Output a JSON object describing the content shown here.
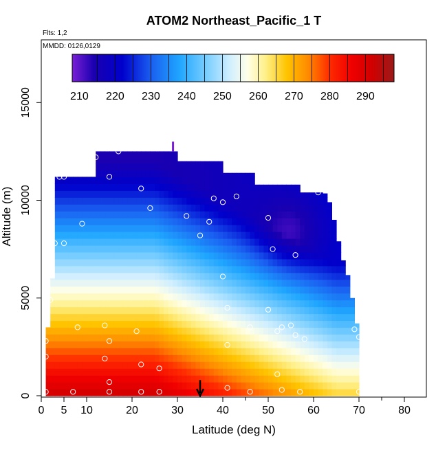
{
  "chart_data": {
    "type": "heatmap",
    "title": "ATOM2 Northeast_Pacific_1 T",
    "annotations": [
      "Flts: 1,2",
      "MMDD: 0126,0129"
    ],
    "xlabel": "Latitude (deg N)",
    "ylabel": "Altitude (m)",
    "xlim": [
      0,
      85
    ],
    "ylim": [
      0,
      17500
    ],
    "x_ticks": [
      0,
      5,
      10,
      20,
      30,
      40,
      50,
      60,
      70,
      80
    ],
    "y_ticks": [
      0,
      5000,
      10000,
      15000
    ],
    "grid": false,
    "colorbar": {
      "placement": "top-inside",
      "range": [
        208,
        298
      ],
      "ticks": [
        210,
        220,
        230,
        240,
        250,
        260,
        270,
        280,
        290
      ],
      "stops": [
        {
          "v": 208,
          "c": "#7a1fd6"
        },
        {
          "v": 214,
          "c": "#1a00b0"
        },
        {
          "v": 222,
          "c": "#0000cc"
        },
        {
          "v": 230,
          "c": "#1a5ef0"
        },
        {
          "v": 238,
          "c": "#1fa6ff"
        },
        {
          "v": 246,
          "c": "#7fd0ff"
        },
        {
          "v": 252,
          "c": "#cfeeff"
        },
        {
          "v": 257,
          "c": "#ffffe8"
        },
        {
          "v": 262,
          "c": "#fff08a"
        },
        {
          "v": 268,
          "c": "#ffc400"
        },
        {
          "v": 274,
          "c": "#ff8a00"
        },
        {
          "v": 280,
          "c": "#ff2a00"
        },
        {
          "v": 286,
          "c": "#f00000"
        },
        {
          "v": 292,
          "c": "#d00000"
        },
        {
          "v": 298,
          "c": "#9a1a1a"
        }
      ]
    },
    "domain_envelope": [
      [
        1,
        0
      ],
      [
        1,
        2000
      ],
      [
        2,
        5000
      ],
      [
        3,
        7000
      ],
      [
        3,
        11200
      ],
      [
        12,
        11200
      ],
      [
        12,
        12500
      ],
      [
        30,
        12500
      ],
      [
        30,
        12000
      ],
      [
        40,
        12000
      ],
      [
        40,
        11400
      ],
      [
        47,
        11400
      ],
      [
        47,
        10800
      ],
      [
        57,
        10800
      ],
      [
        57,
        10400
      ],
      [
        62,
        10400
      ],
      [
        63,
        10300
      ],
      [
        64,
        9500
      ],
      [
        65,
        8500
      ],
      [
        66,
        7300
      ],
      [
        68,
        5800
      ],
      [
        69,
        4200
      ],
      [
        70,
        3200
      ],
      [
        70.5,
        0
      ]
    ],
    "temperature_model": {
      "surface_tropics": 292,
      "surface_high_lat": 266,
      "lapse_rate_K_per_km": 6.5,
      "tropopause_temp_tropics": 214,
      "tropopause_temp_high_lat": 222,
      "tropopause_alt_tropics_m": 12500,
      "tropopause_alt_high_lat_m": 9000
    },
    "samples": [
      [
        1,
        200
      ],
      [
        1,
        2000
      ],
      [
        1,
        2800
      ],
      [
        2,
        4900
      ],
      [
        2,
        7000
      ],
      [
        3,
        7800
      ],
      [
        4,
        11200
      ],
      [
        5,
        11200
      ],
      [
        5,
        7800
      ],
      [
        7,
        200
      ],
      [
        8,
        3500
      ],
      [
        9,
        8800
      ],
      [
        12,
        12200
      ],
      [
        14,
        3600
      ],
      [
        14,
        1900
      ],
      [
        15,
        11200
      ],
      [
        15,
        200
      ],
      [
        15,
        700
      ],
      [
        15,
        2800
      ],
      [
        17,
        12500
      ],
      [
        21,
        3300
      ],
      [
        22,
        10600
      ],
      [
        22,
        1600
      ],
      [
        22,
        200
      ],
      [
        24,
        9600
      ],
      [
        26,
        1400
      ],
      [
        26,
        200
      ],
      [
        32,
        9200
      ],
      [
        35,
        8200
      ],
      [
        37,
        8900
      ],
      [
        38,
        10100
      ],
      [
        40,
        9900
      ],
      [
        40,
        6100
      ],
      [
        41,
        4500
      ],
      [
        41,
        2600
      ],
      [
        41,
        400
      ],
      [
        43,
        10200
      ],
      [
        46,
        200
      ],
      [
        46,
        3500
      ],
      [
        50,
        9100
      ],
      [
        50,
        4400
      ],
      [
        51,
        7500
      ],
      [
        52,
        3300
      ],
      [
        52,
        1100
      ],
      [
        53,
        3500
      ],
      [
        53,
        300
      ],
      [
        55,
        3600
      ],
      [
        56,
        7200
      ],
      [
        56,
        3100
      ],
      [
        57,
        200
      ],
      [
        58,
        2900
      ],
      [
        61,
        10400
      ],
      [
        64,
        10400
      ],
      [
        69,
        3400
      ],
      [
        70,
        3000
      ],
      [
        70,
        200
      ]
    ],
    "flight_marker": {
      "x": 35,
      "y_from": 800,
      "y_to": 0,
      "shape": "arrow-down"
    }
  },
  "colors": {
    "axis": "#000000",
    "sample_marker": "#ffffff",
    "background": "#ffffff"
  }
}
